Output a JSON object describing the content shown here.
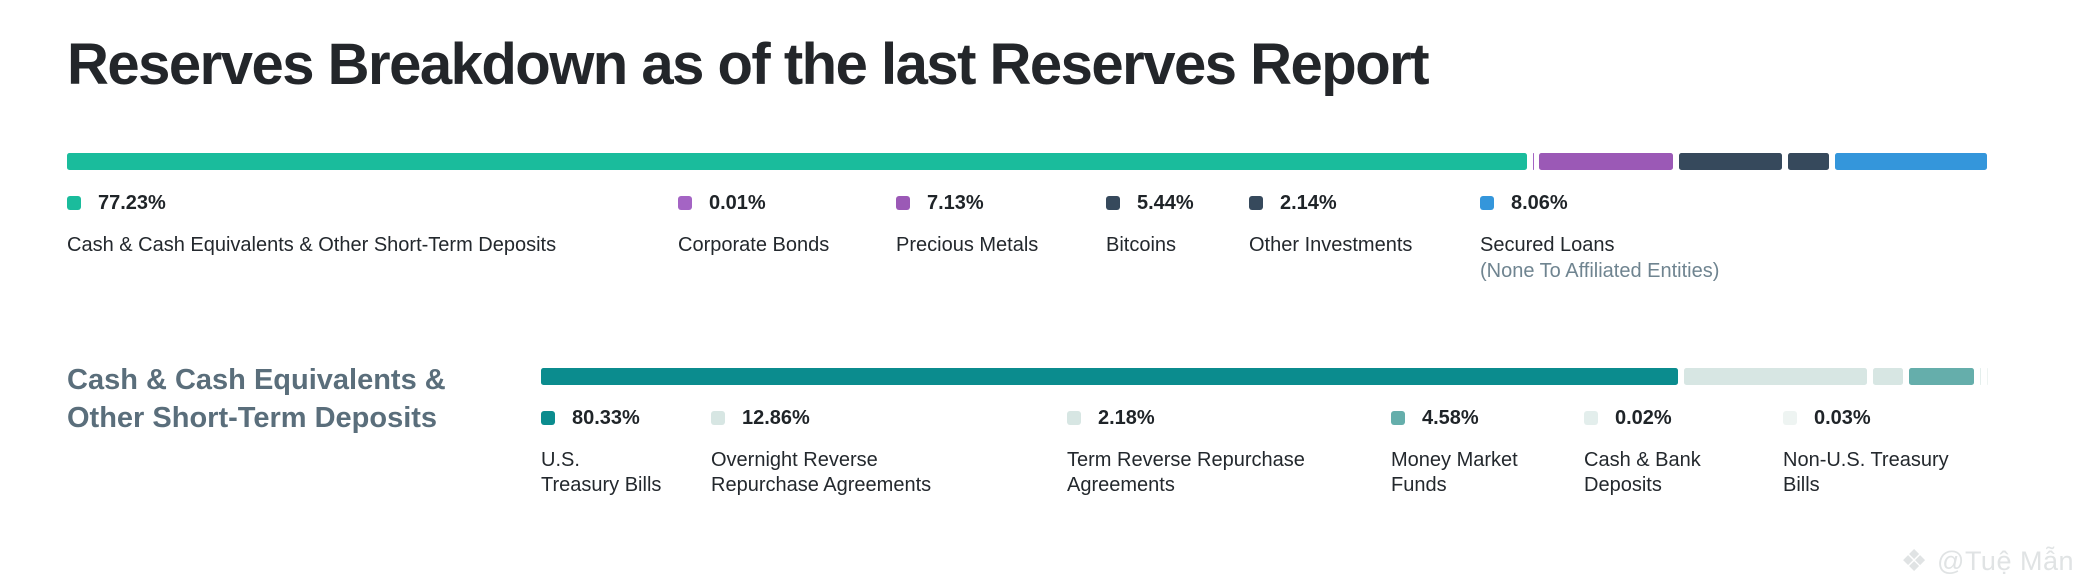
{
  "title": "Reserves Breakdown as of the last Reserves Report",
  "watermark": {
    "icon": "diamond-logo",
    "text": "@Tuệ Mẫn"
  },
  "sections": [
    {
      "id": "reserves-total",
      "heading": "",
      "items": [
        {
          "pct_label": "77.23%",
          "value": 77.23,
          "label": "Cash & Cash Equivalents & Other Short-Term Deposits",
          "color": "#1abc9c"
        },
        {
          "pct_label": "0.01%",
          "value": 0.01,
          "label": "Corporate Bonds",
          "color": "#a464c4"
        },
        {
          "pct_label": "7.13%",
          "value": 7.13,
          "label": "Precious Metals",
          "color": "#9b59b6"
        },
        {
          "pct_label": "5.44%",
          "value": 5.44,
          "label": "Bitcoins",
          "color": "#36495c"
        },
        {
          "pct_label": "2.14%",
          "value": 2.14,
          "label": "Other Investments",
          "color": "#36495c"
        },
        {
          "pct_label": "8.06%",
          "value": 8.06,
          "label": "Secured Loans",
          "sublabel": "(None To Affiliated Entities)",
          "color": "#3496db"
        }
      ]
    },
    {
      "id": "cash-equivalents",
      "heading": "Cash & Cash Equivalents & Other Short-Term Deposits",
      "items": [
        {
          "pct_label": "80.33%",
          "value": 80.33,
          "label": "U.S. Treasury Bills",
          "color": "#0b8c8e"
        },
        {
          "pct_label": "12.86%",
          "value": 12.86,
          "label": "Overnight Reverse Repurchase Agreements",
          "color": "#d7e6e3"
        },
        {
          "pct_label": "2.18%",
          "value": 2.18,
          "label": "Term Reverse Repurchase Agreements",
          "color": "#d7e6e3"
        },
        {
          "pct_label": "4.58%",
          "value": 4.58,
          "label": "Money Market Funds",
          "color": "#65aeab"
        },
        {
          "pct_label": "0.02%",
          "value": 0.02,
          "label": "Cash & Bank Deposits",
          "color": "#e3eeec",
          "swatch": "dots"
        },
        {
          "pct_label": "0.03%",
          "value": 0.03,
          "label": "Non-U.S. Treasury Bills",
          "color": "#eef4f2",
          "swatch": "dots-faint"
        }
      ]
    }
  ],
  "chart_data": [
    {
      "type": "bar",
      "subtype": "stacked-horizontal",
      "title": "Reserves Breakdown as of the last Reserves Report",
      "categories": [
        "Cash & Cash Equivalents & Other Short-Term Deposits",
        "Corporate Bonds",
        "Precious Metals",
        "Bitcoins",
        "Other Investments",
        "Secured Loans (None To Affiliated Entities)"
      ],
      "values": [
        77.23,
        0.01,
        7.13,
        5.44,
        2.14,
        8.06
      ],
      "unit": "%",
      "colors": [
        "#1abc9c",
        "#a464c4",
        "#9b59b6",
        "#36495c",
        "#36495c",
        "#3496db"
      ],
      "legend_position": "below",
      "xlim": [
        0,
        100
      ]
    },
    {
      "type": "bar",
      "subtype": "stacked-horizontal",
      "title": "Cash & Cash Equivalents & Other Short-Term Deposits",
      "categories": [
        "U.S. Treasury Bills",
        "Overnight Reverse Repurchase Agreements",
        "Term Reverse Repurchase Agreements",
        "Money Market Funds",
        "Cash & Bank Deposits",
        "Non-U.S. Treasury Bills"
      ],
      "values": [
        80.33,
        12.86,
        2.18,
        4.58,
        0.02,
        0.03
      ],
      "unit": "%",
      "colors": [
        "#0b8c8e",
        "#d7e6e3",
        "#d7e6e3",
        "#65aeab",
        "#9fc0bb",
        "#dfecea"
      ],
      "legend_position": "below",
      "xlim": [
        0,
        100
      ]
    }
  ]
}
